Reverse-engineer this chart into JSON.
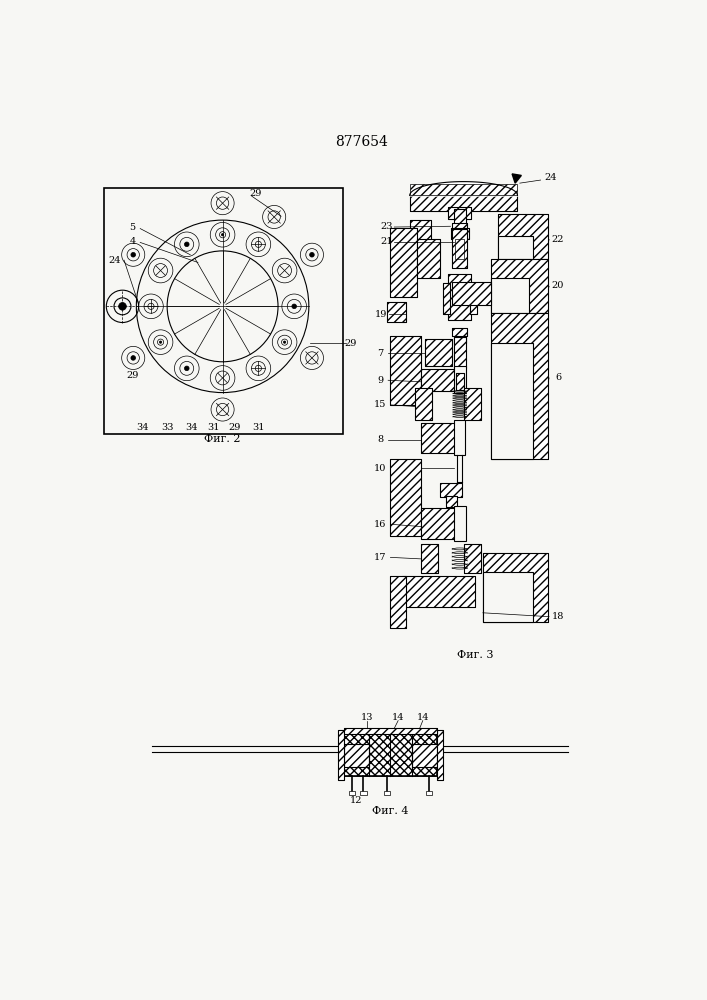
{
  "title": "877654",
  "fig2_label": "Фиг. 2",
  "fig3_label": "Фиг. 3",
  "fig4_label": "Фиг. 4",
  "bg": "#f7f7f4"
}
